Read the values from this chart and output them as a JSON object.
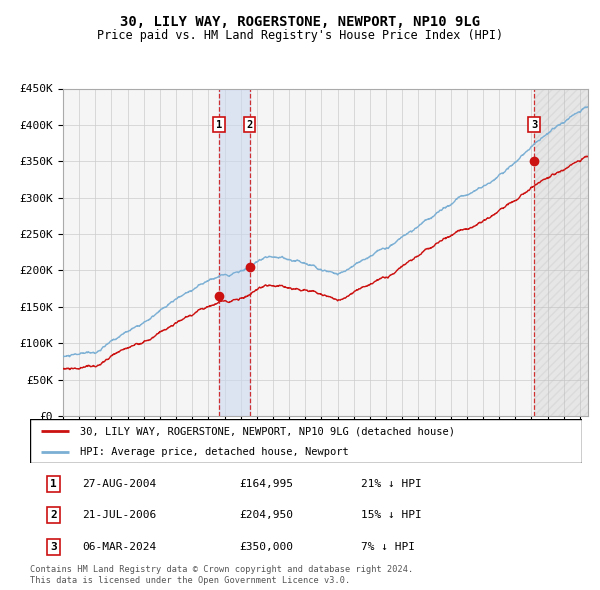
{
  "title": "30, LILY WAY, ROGERSTONE, NEWPORT, NP10 9LG",
  "subtitle": "Price paid vs. HM Land Registry's House Price Index (HPI)",
  "ylim": [
    0,
    450000
  ],
  "yticks": [
    0,
    50000,
    100000,
    150000,
    200000,
    250000,
    300000,
    350000,
    400000,
    450000
  ],
  "hpi_color": "#7bafd4",
  "price_color": "#cc1111",
  "sale1_date": 2004.65,
  "sale1_price": 164995,
  "sale2_date": 2006.55,
  "sale2_price": 204950,
  "sale3_date": 2024.17,
  "sale3_price": 350000,
  "legend_price_label": "30, LILY WAY, ROGERSTONE, NEWPORT, NP10 9LG (detached house)",
  "legend_hpi_label": "HPI: Average price, detached house, Newport",
  "table_entries": [
    {
      "num": "1",
      "date": "27-AUG-2004",
      "price": "£164,995",
      "change": "21% ↓ HPI"
    },
    {
      "num": "2",
      "date": "21-JUL-2006",
      "price": "£204,950",
      "change": "15% ↓ HPI"
    },
    {
      "num": "3",
      "date": "06-MAR-2024",
      "price": "£350,000",
      "change": "7% ↓ HPI"
    }
  ],
  "footer": "Contains HM Land Registry data © Crown copyright and database right 2024.\nThis data is licensed under the Open Government Licence v3.0.",
  "xmin": 1995.0,
  "xmax": 2027.5,
  "future_start": 2024.17,
  "grid_color": "#cccccc",
  "chart_bg": "#f5f5f5"
}
